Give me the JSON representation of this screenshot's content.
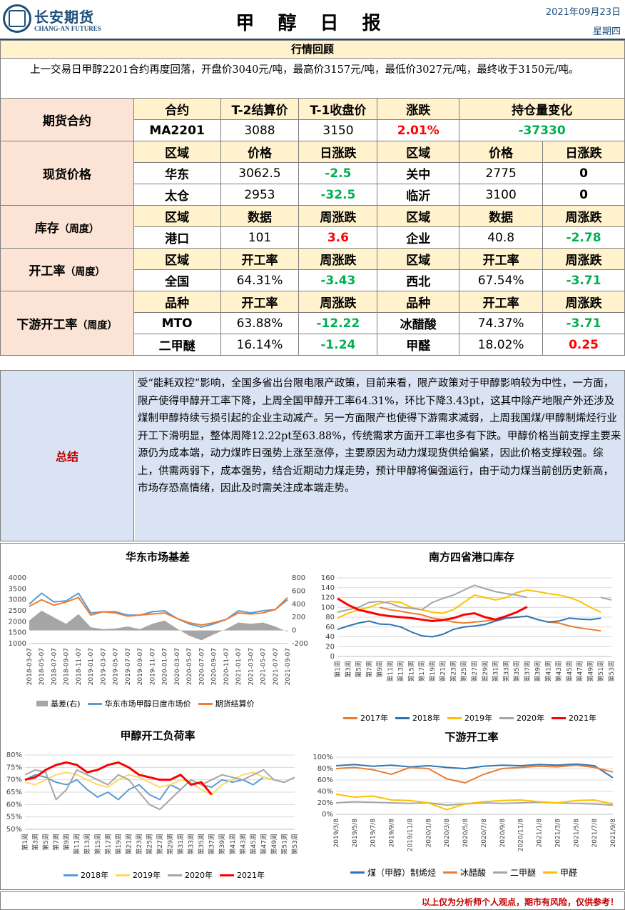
{
  "header": {
    "company_cn": "长安期货",
    "company_en": "CHANG-AN FUTURES",
    "title": "甲 醇 日 报",
    "date": "2021年09月23日",
    "weekday": "星期四"
  },
  "review": {
    "heading": "行情回顾",
    "text": "上一交易日甲醇2201合约再度回落，开盘价3040元/吨，最高价3157元/吨，最低价3027元/吨，最终收于3150元/吨。"
  },
  "futures": {
    "label": "期货合约",
    "headers": [
      "合约",
      "T-2结算价",
      "T-1收盘价",
      "涨跌",
      "持仓量变化"
    ],
    "row": [
      "MA2201",
      "3088",
      "3150",
      "2.01%",
      "-37330"
    ]
  },
  "spot": {
    "label": "现货价格",
    "headers": [
      "区域",
      "价格",
      "日涨跌",
      "区域",
      "价格",
      "日涨跌"
    ],
    "rows": [
      [
        "华东",
        "3062.5",
        "-2.5",
        "关中",
        "2775",
        "0"
      ],
      [
        "太仓",
        "2953",
        "-32.5",
        "临沂",
        "3100",
        "0"
      ]
    ]
  },
  "inventory": {
    "label": "库存",
    "sub": "（周度）",
    "headers": [
      "区域",
      "数据",
      "周涨跌",
      "区域",
      "数据",
      "周涨跌"
    ],
    "row": [
      "港口",
      "101",
      "3.6",
      "企业",
      "40.8",
      "-2.78"
    ]
  },
  "operating": {
    "label": "开工率",
    "sub": "（周度）",
    "headers": [
      "区域",
      "开工率",
      "周涨跌",
      "区域",
      "开工率",
      "周涨跌"
    ],
    "row": [
      "全国",
      "64.31%",
      "-3.43",
      "西北",
      "67.54%",
      "-3.71"
    ]
  },
  "downstream": {
    "label": "下游开工率",
    "sub": "（周度）",
    "headers": [
      "品种",
      "开工率",
      "周涨跌",
      "品种",
      "开工率",
      "周涨跌"
    ],
    "rows": [
      [
        "MTO",
        "63.88%",
        "-12.22",
        "冰醋酸",
        "74.37%",
        "-3.71"
      ],
      [
        "二甲醚",
        "16.14%",
        "-1.24",
        "甲醛",
        "18.02%",
        "0.25"
      ]
    ]
  },
  "summary": {
    "label": "总结",
    "text": "受“能耗双控”影响，全国多省出台限电限产政策，目前来看，限产政策对于甲醇影响较为中性，一方面，限产使得甲醇开工率下降，上周全国甲醇开工率64.31%，环比下降3.43pt，这其中除产地限产外还涉及煤制甲醇持续亏损引起的企业主动减产。另一方面限产也使得下游需求减弱，上周我国煤/甲醇制烯烃行业开工下滑明显，整体周降12.22pt至63.88%，传统需求方面开工率也多有下跌。甲醇价格当前支撑主要来源仍为成本端，动力煤昨日强势上涨至涨停，主要原因为动力煤现货供给偏紧，因此价格支撑较强。综上，供需两弱下，成本强势，结合近期动力煤走势，预计甲醇将偏强运行，由于动力煤当前创历史新高，市场存恐高情绪，因此及时需关注成本端走势。"
  },
  "colors": {
    "up": "#ff0000",
    "down": "#00b050",
    "label_bg": "#fbe4d5",
    "header_bg": "#fff2cc",
    "summary_bg": "#dae3f3"
  },
  "chart_data": [
    {
      "type": "line",
      "title": "华东市场基差",
      "ylim": [
        1000,
        4000
      ],
      "y2lim": [
        -200,
        800
      ],
      "yticks": [
        "4000",
        "3500",
        "3000",
        "2500",
        "2000",
        "1500",
        "1000"
      ],
      "y2ticks": [
        "800",
        "600",
        "400",
        "200",
        "0",
        "-200"
      ],
      "x": [
        "2018-03-07",
        "2018-05-07",
        "2018-07-07",
        "2018-09-07",
        "2018-11-07",
        "2019-01-07",
        "2019-03-07",
        "2019-05-07",
        "2019-07-07",
        "2019-09-07",
        "2019-11-07",
        "2020-01-07",
        "2020-03-07",
        "2020-05-07",
        "2020-07-07",
        "2020-09-07",
        "2020-11-07",
        "2021-01-07",
        "2021-03-07",
        "2021-05-07",
        "2021-07-07",
        "2021-09-07"
      ],
      "series": [
        {
          "name": "基差(右)",
          "type": "area",
          "color": "#a6a6a6",
          "values": [
            150,
            300,
            200,
            100,
            250,
            50,
            20,
            30,
            60,
            20,
            100,
            150,
            30,
            -80,
            -150,
            -60,
            20,
            120,
            100,
            120,
            60,
            -20
          ]
        },
        {
          "name": "华东市场甲醇日度市场价",
          "color": "#5b9bd5",
          "values": [
            2800,
            3300,
            2900,
            2950,
            3300,
            2400,
            2450,
            2450,
            2300,
            2300,
            2450,
            2500,
            2150,
            1900,
            1750,
            1900,
            2100,
            2500,
            2400,
            2500,
            2550,
            3000
          ]
        },
        {
          "name": "期货结算价",
          "color": "#ed7d31",
          "values": [
            2700,
            3000,
            2750,
            2900,
            3100,
            2300,
            2450,
            2400,
            2250,
            2300,
            2350,
            2400,
            2150,
            1950,
            1850,
            1950,
            2100,
            2400,
            2350,
            2400,
            2550,
            3100
          ]
        }
      ]
    },
    {
      "type": "line",
      "title": "南方四省港口库存",
      "ylim": [
        0,
        160
      ],
      "yticks": [
        "160",
        "140",
        "120",
        "100",
        "80",
        "60",
        "40",
        "20",
        "0"
      ],
      "x": [
        "第1周",
        "第3周",
        "第5周",
        "第7周",
        "第9周",
        "第11周",
        "第13周",
        "第15周",
        "第17周",
        "第19周",
        "第21周",
        "第23周",
        "第25周",
        "第27周",
        "第29周",
        "第31周",
        "第33周",
        "第35周",
        "第37周",
        "第39周",
        "第41周",
        "第43周",
        "第45周",
        "第47周",
        "第49周",
        "第51周",
        "第53周"
      ],
      "series": [
        {
          "name": "2017年",
          "color": "#ed7d31",
          "values": [
            null,
            null,
            null,
            null,
            100,
            95,
            92,
            88,
            85,
            78,
            75,
            70,
            68,
            70,
            72,
            75,
            78,
            80,
            82,
            75,
            70,
            68,
            62,
            58,
            55,
            52,
            null
          ]
        },
        {
          "name": "2018年",
          "color": "#2e75b6",
          "values": [
            55,
            62,
            68,
            72,
            66,
            65,
            60,
            50,
            42,
            40,
            45,
            55,
            60,
            62,
            65,
            72,
            78,
            80,
            82,
            75,
            70,
            72,
            78,
            76,
            75,
            78,
            null
          ]
        },
        {
          "name": "2019年",
          "color": "#ffc000",
          "values": [
            78,
            88,
            95,
            100,
            108,
            112,
            110,
            100,
            95,
            90,
            88,
            95,
            110,
            125,
            120,
            115,
            120,
            130,
            135,
            132,
            128,
            125,
            120,
            112,
            100,
            90,
            null
          ]
        },
        {
          "name": "2020年",
          "color": "#a6a6a6",
          "values": [
            90,
            95,
            100,
            110,
            112,
            108,
            100,
            98,
            95,
            110,
            118,
            125,
            135,
            145,
            138,
            132,
            128,
            125,
            120,
            null,
            null,
            null,
            null,
            null,
            null,
            120,
            115
          ]
        },
        {
          "name": "2021年",
          "color": "#ff0000",
          "values": [
            118,
            105,
            95,
            90,
            85,
            82,
            80,
            78,
            75,
            72,
            74,
            78,
            85,
            88,
            80,
            75,
            82,
            90,
            101,
            null,
            null,
            null,
            null,
            null,
            null,
            null,
            null
          ]
        }
      ]
    },
    {
      "type": "line",
      "title": "甲醇开工负荷率",
      "ylim": [
        50,
        80
      ],
      "yticks": [
        "80%",
        "75%",
        "70%",
        "65%",
        "60%",
        "55%",
        "50%"
      ],
      "x": [
        "第1周",
        "第3周",
        "第5周",
        "第7周",
        "第9周",
        "第11周",
        "第13周",
        "第15周",
        "第17周",
        "第19周",
        "第21周",
        "第23周",
        "第25周",
        "第27周",
        "第29周",
        "第31周",
        "第33周",
        "第35周",
        "第37周",
        "第39周",
        "第41周",
        "第43周",
        "第45周",
        "第47周",
        "第49周",
        "第51周",
        "第53周"
      ],
      "series": [
        {
          "name": "2018年",
          "color": "#5b9bd5",
          "values": [
            70,
            72,
            71,
            69,
            68,
            70,
            66,
            63,
            65,
            62,
            66,
            68,
            64,
            62,
            68,
            66,
            70,
            68,
            67,
            70,
            69,
            70,
            68,
            71,
            70,
            69,
            null
          ]
        },
        {
          "name": "2019年",
          "color": "#ffd966",
          "values": [
            69,
            68,
            70,
            72,
            73,
            72,
            70,
            68,
            67,
            70,
            72,
            71,
            69,
            67,
            68,
            70,
            69,
            66,
            64,
            68,
            70,
            72,
            73,
            71,
            70,
            69,
            null
          ]
        },
        {
          "name": "2020年",
          "color": "#a6a6a6",
          "values": [
            72,
            74,
            73,
            62,
            66,
            74,
            72,
            70,
            68,
            72,
            70,
            65,
            60,
            58,
            62,
            66,
            70,
            68,
            70,
            72,
            71,
            70,
            72,
            74,
            70,
            69,
            71
          ]
        },
        {
          "name": "2021年",
          "color": "#ff0000",
          "values": [
            70,
            71,
            74,
            76,
            77,
            76,
            73,
            74,
            76,
            77,
            75,
            72,
            71,
            70,
            70,
            72,
            68,
            69,
            64,
            null,
            null,
            null,
            null,
            null,
            null,
            null,
            null
          ]
        }
      ]
    },
    {
      "type": "line",
      "title": "下游开工率",
      "ylim": [
        0,
        100
      ],
      "yticks": [
        "100%",
        "80%",
        "60%",
        "40%",
        "20%",
        "0%"
      ],
      "x": [
        "2019/3/8",
        "2019/5/8",
        "2019/7/8",
        "2019/9/8",
        "2019/11/8",
        "2020/1/8",
        "2020/3/8",
        "2020/5/8",
        "2020/7/8",
        "2020/9/8",
        "2020/11/8",
        "2021/1/8",
        "2021/3/8",
        "2021/5/8",
        "2021/7/8",
        "2021/9/8"
      ],
      "series": [
        {
          "name": "煤（甲醇）制烯烃",
          "color": "#2e75b6",
          "values": [
            85,
            87,
            84,
            86,
            83,
            85,
            82,
            80,
            84,
            86,
            85,
            87,
            86,
            88,
            85,
            64
          ]
        },
        {
          "name": "冰醋酸",
          "color": "#ed7d31",
          "values": [
            80,
            82,
            78,
            70,
            82,
            80,
            62,
            55,
            70,
            80,
            82,
            84,
            83,
            86,
            82,
            74
          ]
        },
        {
          "name": "二甲醚",
          "color": "#a6a6a6",
          "values": [
            20,
            22,
            21,
            20,
            19,
            20,
            16,
            18,
            20,
            19,
            20,
            21,
            20,
            19,
            18,
            16
          ]
        },
        {
          "name": "甲醛",
          "color": "#ffc000",
          "values": [
            35,
            30,
            32,
            25,
            24,
            20,
            8,
            18,
            22,
            24,
            25,
            22,
            20,
            24,
            25,
            18
          ]
        }
      ]
    }
  ],
  "footer": {
    "note": "以上仅为分析师个人观点，期市有风险，仅供参考！"
  }
}
